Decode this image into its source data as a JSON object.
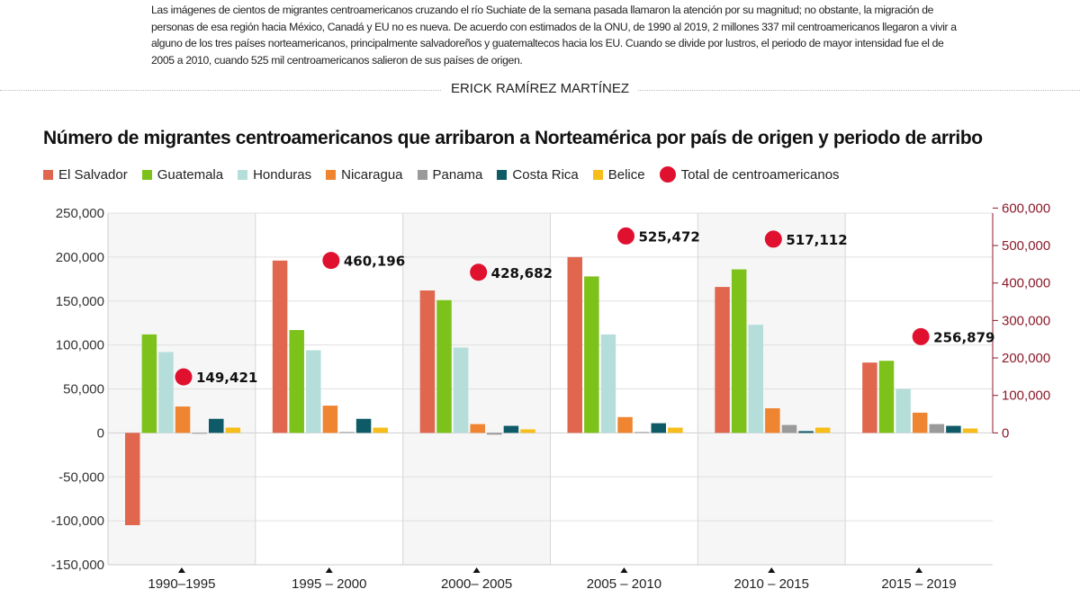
{
  "intro": "Las imágenes de cientos de migrantes centroamericanos cruzando el río Suchiate de la semana pasada llamaron la atención por su magnitud; no obstante, la migración de personas de esa región hacia México, Canadá y EU no es nueva. De acuerdo con estimados de la ONU, de 1990 al 2019, 2 millones 337 mil centroamericanos llegaron a vivir a alguno de los tres países norteamericanos, principalmente salvadoreños y guatemaltecos hacia los EU. Cuando se divide por lustros, el periodo de mayor intensidad fue el de 2005 a 2010, cuando 525 mil centroamericanos salieron de sus países de origen.",
  "byline": "ERICK RAMÍREZ MARTÍNEZ",
  "chart_data": {
    "type": "bar",
    "title": "Número de migrantes centroamericanos que arribaron a Norteamérica por país de origen y periodo de arribo",
    "categories": [
      "1990–1995",
      "1995 – 2000",
      "2000– 2005",
      "2005 – 2010",
      "2010 – 2015",
      "2015 – 2019"
    ],
    "ylim": [
      -150000,
      250000
    ],
    "yticks": [
      "250,000",
      "200,000",
      "150,000",
      "100,000",
      "50,000",
      "0",
      "-50,000",
      "-100,000",
      "-150,000"
    ],
    "y2lim": [
      0,
      600000
    ],
    "y2ticks": [
      "600,000",
      "500,000",
      "400,000",
      "300,000",
      "200,000",
      "100,000",
      "0"
    ],
    "grid": true,
    "legend_position": "top",
    "series": [
      {
        "name": "El Salvador",
        "color": "#e0664e",
        "values": [
          -105000,
          196000,
          162000,
          200000,
          166000,
          80000
        ]
      },
      {
        "name": "Guatemala",
        "color": "#7cc21a",
        "values": [
          112000,
          117000,
          151000,
          178000,
          186000,
          82000
        ]
      },
      {
        "name": "Honduras",
        "color": "#b5dedb",
        "values": [
          92000,
          94000,
          97000,
          112000,
          123000,
          50000
        ]
      },
      {
        "name": "Nicaragua",
        "color": "#ef8531",
        "values": [
          30000,
          31000,
          10000,
          18000,
          28000,
          23000
        ]
      },
      {
        "name": "Panama",
        "color": "#9a9a9a",
        "values": [
          0,
          1000,
          -2000,
          1000,
          9000,
          10000
        ]
      },
      {
        "name": "Costa Rica",
        "color": "#0e5a66",
        "values": [
          16000,
          16000,
          8000,
          11000,
          2000,
          8000
        ]
      },
      {
        "name": "Belice",
        "color": "#f7bd1a",
        "values": [
          6000,
          6000,
          4000,
          6000,
          6000,
          5000
        ]
      }
    ],
    "total_series": {
      "name": "Total de centroamericanos",
      "color": "#e0102f",
      "axis": "right",
      "values": [
        149421,
        460196,
        428682,
        525472,
        517112,
        256879
      ],
      "labels": [
        "149,421",
        "460,196",
        "428,682",
        "525,472",
        "517,112",
        "256,879"
      ]
    }
  }
}
